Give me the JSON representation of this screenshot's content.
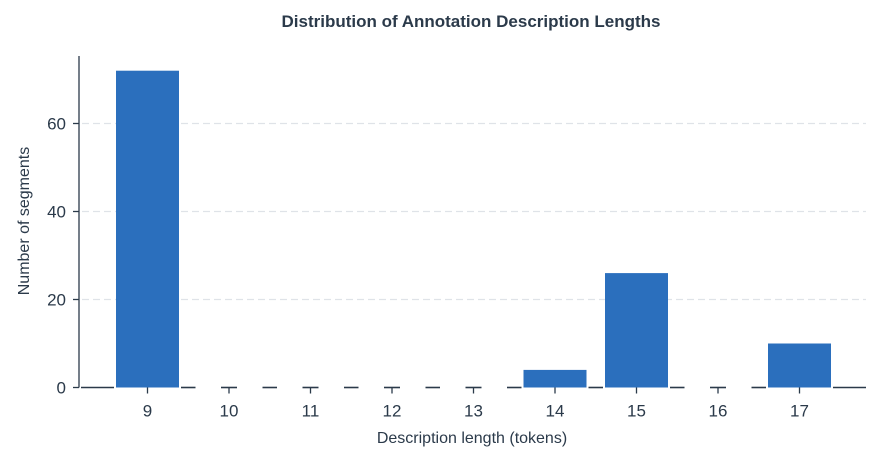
{
  "chart_data": {
    "type": "bar",
    "title": "Distribution of Annotation Description Lengths",
    "xlabel": "Description length (tokens)",
    "ylabel": "Number of segments",
    "categories": [
      "9",
      "10",
      "11",
      "12",
      "13",
      "14",
      "15",
      "16",
      "17"
    ],
    "values": [
      72,
      0,
      0,
      0,
      0,
      4,
      26,
      0,
      10
    ],
    "ylim": [
      0,
      76
    ],
    "yticks": [
      0,
      20,
      40,
      60
    ],
    "grid": "y-dashed",
    "bar_color": "#2b6fbd",
    "legend": "none"
  }
}
